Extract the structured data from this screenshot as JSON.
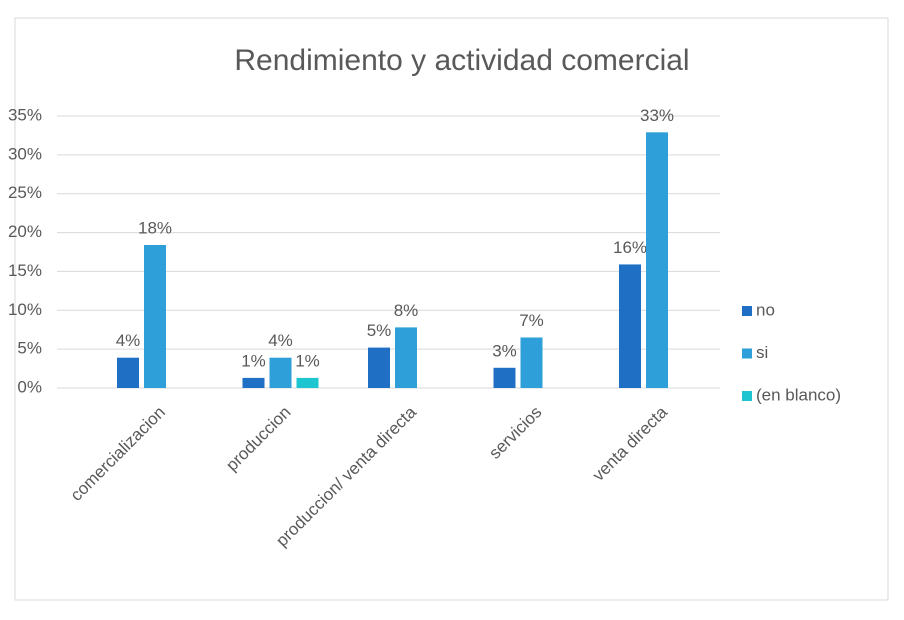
{
  "chart_data": {
    "type": "bar",
    "title": "Rendimiento y actividad comercial",
    "categories": [
      "comercializacion",
      "produccion",
      "produccion/ venta directa",
      "servicios",
      "venta directa"
    ],
    "series": [
      {
        "name": "no",
        "color": "#1f6fc5",
        "values": [
          3.9,
          1.3,
          5.2,
          2.6,
          15.9
        ],
        "value_labels": [
          "4%",
          "1%",
          "5%",
          "3%",
          "16%"
        ]
      },
      {
        "name": "si",
        "color": "#2e9fd8",
        "values": [
          18.4,
          3.9,
          7.8,
          6.5,
          32.9
        ],
        "value_labels": [
          "18%",
          "4%",
          "8%",
          "7%",
          "33%"
        ]
      },
      {
        "name": "(en blanco)",
        "color": "#1cc5d0",
        "values": [
          null,
          1.3,
          null,
          null,
          null
        ],
        "value_labels": [
          null,
          "1%",
          null,
          null,
          null
        ]
      }
    ],
    "ylim": [
      0,
      35
    ],
    "yticks": [
      {
        "value": 0,
        "label": "0%"
      },
      {
        "value": 5,
        "label": "5%"
      },
      {
        "value": 10,
        "label": "10%"
      },
      {
        "value": 15,
        "label": "15%"
      },
      {
        "value": 20,
        "label": "20%"
      },
      {
        "value": 25,
        "label": "25%"
      },
      {
        "value": 30,
        "label": "30%"
      },
      {
        "value": 35,
        "label": "35%"
      }
    ],
    "grid": true,
    "legend": "right"
  }
}
